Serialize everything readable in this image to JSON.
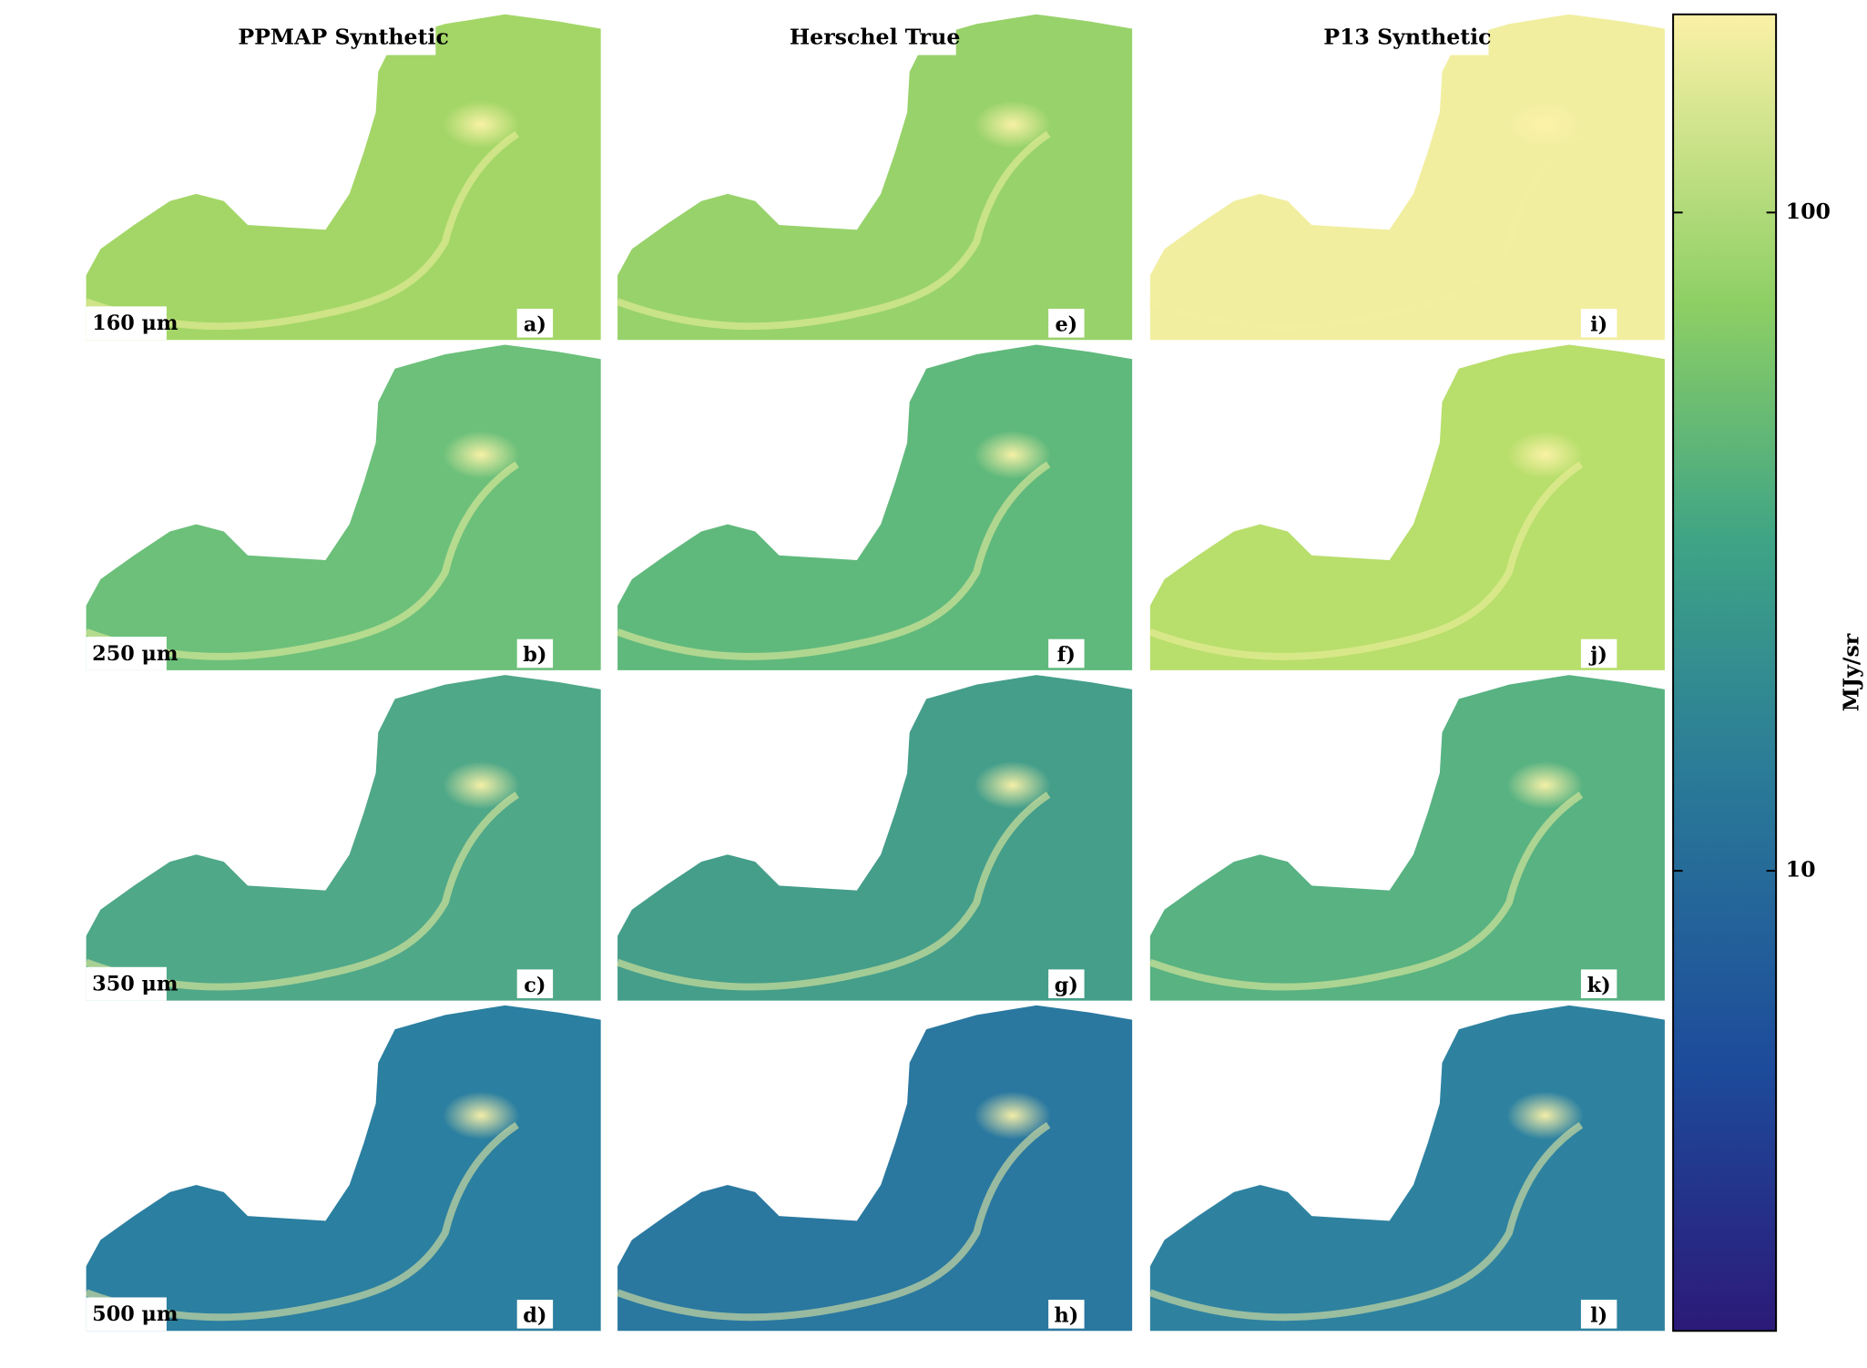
{
  "chart_data": {
    "type": "image_grid",
    "rows": [
      "160 μm",
      "250 μm",
      "350 μm",
      "500 μm"
    ],
    "columns": [
      {
        "title": "PPMAP Synthetic",
        "panels": [
          {
            "label": "a)",
            "color": "#a3d667"
          },
          {
            "label": "b)",
            "color": "#6cc07a"
          },
          {
            "label": "c)",
            "color": "#4fa888"
          },
          {
            "label": "d)",
            "color": "#2b7fa0"
          }
        ]
      },
      {
        "title": "Herschel True",
        "panels": [
          {
            "label": "e)",
            "color": "#98d26b"
          },
          {
            "label": "f)",
            "color": "#60b97c"
          },
          {
            "label": "g)",
            "color": "#449e8a"
          },
          {
            "label": "h)",
            "color": "#2a78a0"
          }
        ]
      },
      {
        "title": "P13 Synthetic",
        "panels": [
          {
            "label": "i)",
            "color": "#f1eea0"
          },
          {
            "label": "j)",
            "color": "#b8de6c"
          },
          {
            "label": "k)",
            "color": "#58b282"
          },
          {
            "label": "l)",
            "color": "#2e82a0"
          }
        ]
      }
    ],
    "colorbar": {
      "label": "MJy/sr",
      "log": true,
      "ylim": [
        2,
        200
      ],
      "yticks": [
        10,
        100
      ]
    }
  }
}
